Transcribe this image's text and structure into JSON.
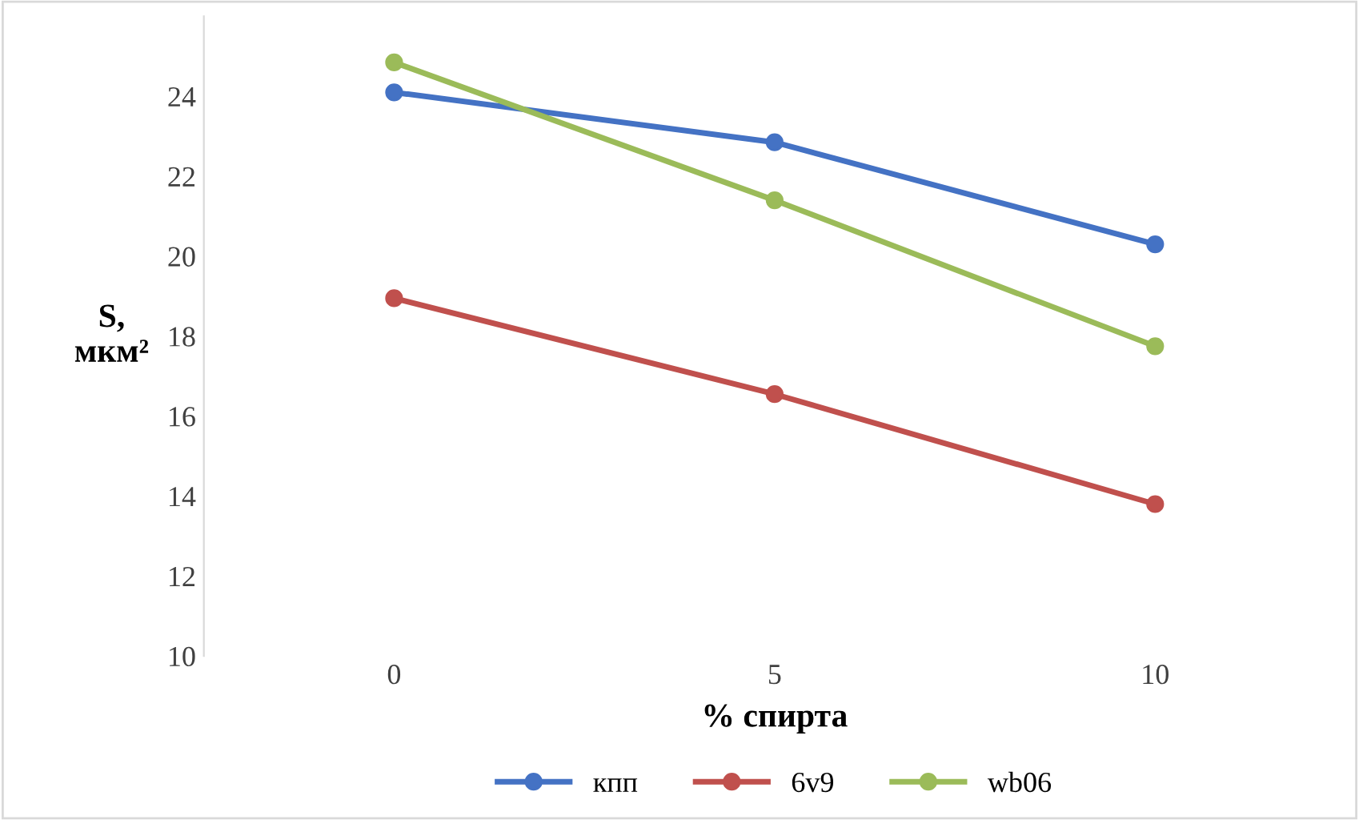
{
  "chart_data": {
    "type": "line",
    "xlabel": "% спирта",
    "ylabel": "S,\nмкм²",
    "categories": [
      "0",
      "5",
      "10"
    ],
    "series": [
      {
        "name": "кпп",
        "color": "#4472c4",
        "values": [
          24.1,
          22.85,
          20.3
        ]
      },
      {
        "name": "6v9",
        "color": "#c0504d",
        "values": [
          18.95,
          16.55,
          13.8
        ]
      },
      {
        "name": "wb06",
        "color": "#9bbb59",
        "values": [
          24.85,
          21.4,
          17.75
        ]
      }
    ],
    "ylim": [
      10,
      26
    ],
    "yticks": [
      10,
      12,
      14,
      16,
      18,
      20,
      22,
      24
    ],
    "marker": "circle",
    "line_style": "solid",
    "legend": "bottom",
    "grid": false
  }
}
